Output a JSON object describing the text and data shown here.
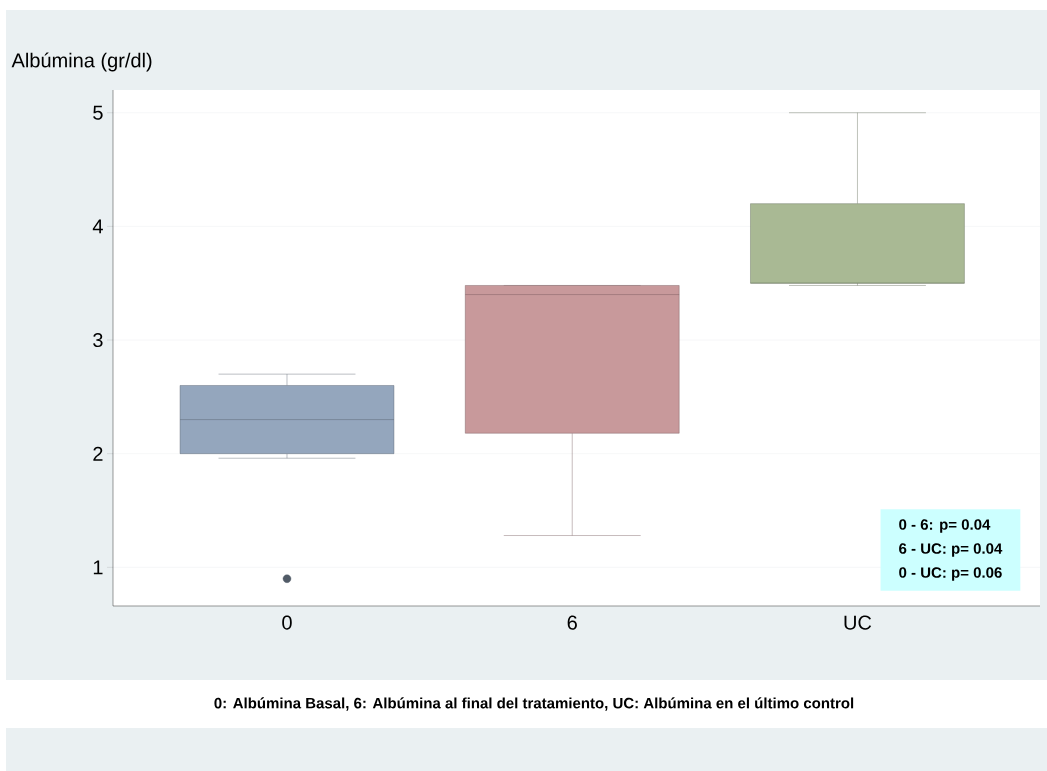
{
  "chart_data": {
    "type": "box",
    "ylabel": "Albúmina (gr/dl)",
    "categories": [
      "0",
      "6",
      "UC"
    ],
    "boxes": [
      {
        "low": 1.96,
        "q1": 2.0,
        "median": 2.3,
        "q3": 2.6,
        "high": 2.7,
        "outliers": [
          0.9
        ]
      },
      {
        "low": 1.28,
        "q1": 2.18,
        "median": 3.4,
        "q3": 3.48,
        "high": 3.48
      },
      {
        "low": 3.48,
        "q1": 3.5,
        "median": 3.5,
        "q3": 4.2,
        "high": 5.0
      }
    ],
    "colors": [
      "#94a6bd",
      "#c8999b",
      "#a9b994"
    ],
    "ylim": [
      0.66,
      5.2
    ],
    "yticks": [
      1,
      2,
      3,
      4,
      5
    ],
    "grid": "y",
    "annotations": [
      "0 - 6: p= 0.04",
      "6 - UC: p= 0.04",
      "0 - UC: p= 0.06",
      "0: Albúmina Basal, 6: Albúmina al final del tratamiento,  UC: Albúmina en el último control"
    ]
  }
}
